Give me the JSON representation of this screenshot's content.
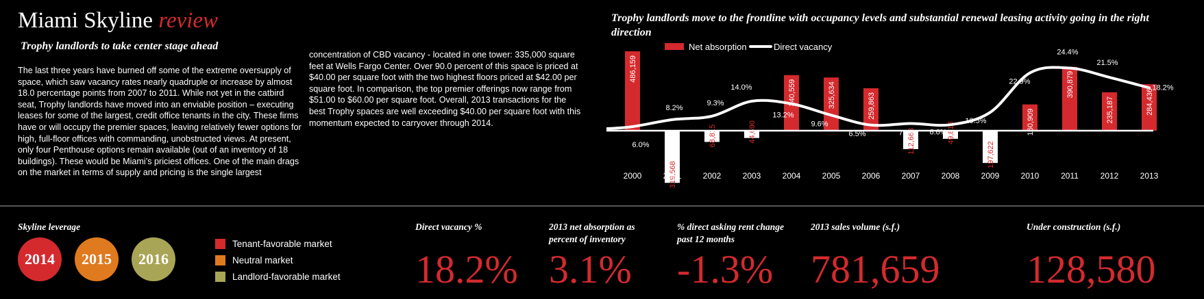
{
  "header": {
    "title_main": "Miami Skyline",
    "title_accent": "review",
    "subtitle": "Trophy landlords to take center stage ahead"
  },
  "body": {
    "col1": "The last three years have burned off some of the extreme oversupply of space, which saw vacancy rates nearly quadruple or increase by almost 18.0 percentage points from 2007 to 2011. While not yet in the catbird seat, Trophy landlords have moved into an enviable position – executing leases for some of the largest, credit office tenants in the city. These firms have or will occupy the premier spaces, leaving relatively fewer options for high, full-floor offices with commanding, unobstructed views. At present, only four Penthouse options remain available (out of an inventory of 18 buildings). These would be Miami’s priciest offices. One of the main drags on the market in terms of supply and pricing is the single largest",
    "col2": "concentration of CBD vacancy - located in one tower: 335,000 square feet at Wells Fargo Center. Over 90.0 percent of this space is priced at $40.00 per square foot with the two highest floors priced at $42.00 per square foot. In comparison, the top premier offerings now range from $51.00 to $60.00 per square foot. Overall, 2013 transactions for the best Trophy spaces are well exceeding $40.00 per square foot with this momentum expected to carryover through 2014."
  },
  "chart_data": {
    "type": "bar",
    "title": "Trophy landlords move to the frontline with occupancy levels and substantial renewal leasing activity going in the right direction",
    "categories": [
      "2000",
      "2001",
      "2002",
      "2003",
      "2004",
      "2005",
      "2006",
      "2007",
      "2008",
      "2009",
      "2010",
      "2011",
      "2012",
      "2013"
    ],
    "series": [
      {
        "name": "Net absorption",
        "kind": "bar",
        "values": [
          486159,
          -319568,
          -68815,
          -44690,
          340559,
          325634,
          259863,
          -112663,
          -49813,
          -197622,
          160909,
          390879,
          235187,
          284436
        ],
        "labels": [
          "486,159",
          "319,568",
          "68,815",
          "44,690",
          "340,559",
          "325,634",
          "259,863",
          "112,663",
          "49,813",
          "197,622",
          "160,909",
          "390,879",
          "235,187",
          "284,436"
        ]
      },
      {
        "name": "Direct vacancy",
        "kind": "line",
        "values": [
          6.0,
          8.2,
          9.3,
          14.0,
          13.2,
          9.6,
          6.5,
          7.0,
          6.6,
          10.5,
          22.9,
          24.4,
          21.5,
          18.2
        ],
        "labels": [
          "6.0%",
          "8.2%",
          "9.3%",
          "14.0%",
          "13.2%",
          "9.6%",
          "6.5%",
          "7.0%",
          "6.6%",
          "10.5%",
          "22.9%",
          "24.4%",
          "21.5%",
          "18.2%"
        ]
      }
    ],
    "colors": {
      "positive_bar": "#d42a2e",
      "negative_bar": "#ffffff",
      "line": "#ffffff"
    },
    "legend_position": "top-left",
    "grid": false
  },
  "footer": {
    "leverage": {
      "label": "Skyline leverage",
      "years": [
        {
          "year": "2014",
          "color": "#d42a2e"
        },
        {
          "year": "2015",
          "color": "#e07a1e"
        },
        {
          "year": "2016",
          "color": "#a9a556"
        }
      ],
      "legend": [
        {
          "label": "Tenant-favorable market",
          "color": "#d42a2e"
        },
        {
          "label": "Neutral market",
          "color": "#e07a1e"
        },
        {
          "label": "Landlord-favorable market",
          "color": "#a9a556"
        }
      ]
    },
    "stats": [
      {
        "label": "Direct vacancy %",
        "value": "18.2%"
      },
      {
        "label": "2013 net absorption as percent of inventory",
        "value": "3.1%"
      },
      {
        "label": "% direct asking rent change past 12 months",
        "value": "-1.3%"
      },
      {
        "label": "2013 sales volume (s.f.)",
        "value": "781,659"
      },
      {
        "label": "Under construction (s.f.)",
        "value": "128,580"
      }
    ]
  }
}
